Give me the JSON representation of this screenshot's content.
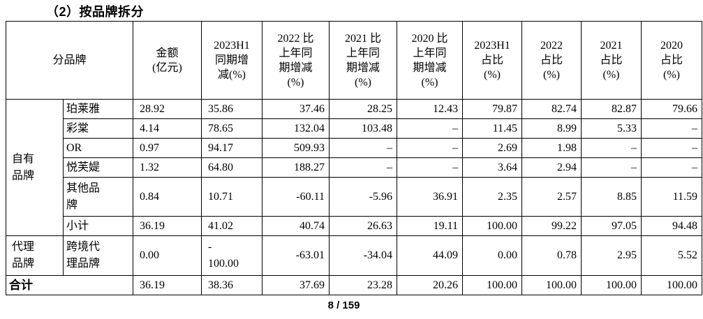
{
  "page": {
    "title": "（2）按品牌拆分",
    "page_indicator": "8 / 159"
  },
  "colors": {
    "text": "#000000",
    "border": "#000000",
    "page_background": "#ffffff"
  },
  "table": {
    "corner_header": "分品牌",
    "column_headers": [
      {
        "label": "金额\n(亿元)"
      },
      {
        "label": "2023H1\n同期增\n减(%)"
      },
      {
        "label": "2022 比\n上年同\n期增减\n(%)"
      },
      {
        "label": "2021 比\n上年同\n期增减\n(%)"
      },
      {
        "label": "2020 比\n上年同\n期增减\n(%)"
      },
      {
        "label": "2023H1\n占比\n(%)"
      },
      {
        "label": "2022\n占比\n(%)"
      },
      {
        "label": "2021\n占比\n(%)"
      },
      {
        "label": "2020\n占比\n(%)"
      }
    ],
    "groups": [
      {
        "label": "自有\n品牌",
        "brands": [
          {
            "brand": "珀莱雅",
            "values": [
              "28.92",
              "35.86",
              "37.46",
              "28.25",
              "12.43",
              "79.87",
              "82.74",
              "82.87",
              "79.66"
            ]
          },
          {
            "brand": "彩棠",
            "values": [
              "4.14",
              "78.65",
              "132.04",
              "103.48",
              "–",
              "11.45",
              "8.99",
              "5.33",
              "–"
            ]
          },
          {
            "brand": "OR",
            "values": [
              "0.97",
              "94.17",
              "509.93",
              "–",
              "–",
              "2.69",
              "1.98",
              "–",
              "–"
            ]
          },
          {
            "brand": "悦芙媞",
            "values": [
              "1.32",
              "64.80",
              "188.27",
              "–",
              "–",
              "3.64",
              "2.94",
              "–",
              "–"
            ]
          },
          {
            "brand": "其他品\n牌",
            "values": [
              "0.84",
              "10.71",
              "-60.11",
              "-5.96",
              "36.91",
              "2.35",
              "2.57",
              "8.85",
              "11.59"
            ]
          },
          {
            "brand": "小计",
            "values": [
              "36.19",
              "41.02",
              "40.74",
              "26.63",
              "19.11",
              "100.00",
              "99.22",
              "97.05",
              "94.48"
            ]
          }
        ]
      },
      {
        "label": "代理\n品牌",
        "brands": [
          {
            "brand": "跨境代\n理品牌",
            "values": [
              "0.00",
              "-\n100.00",
              "-63.01",
              "-34.04",
              "44.09",
              "0.00",
              "0.78",
              "2.95",
              "5.52"
            ]
          }
        ]
      }
    ],
    "total_row": {
      "label": "合计",
      "values": [
        "36.19",
        "38.36",
        "37.69",
        "23.28",
        "20.26",
        "100.00",
        "100.00",
        "100.00",
        "100.00"
      ]
    }
  }
}
